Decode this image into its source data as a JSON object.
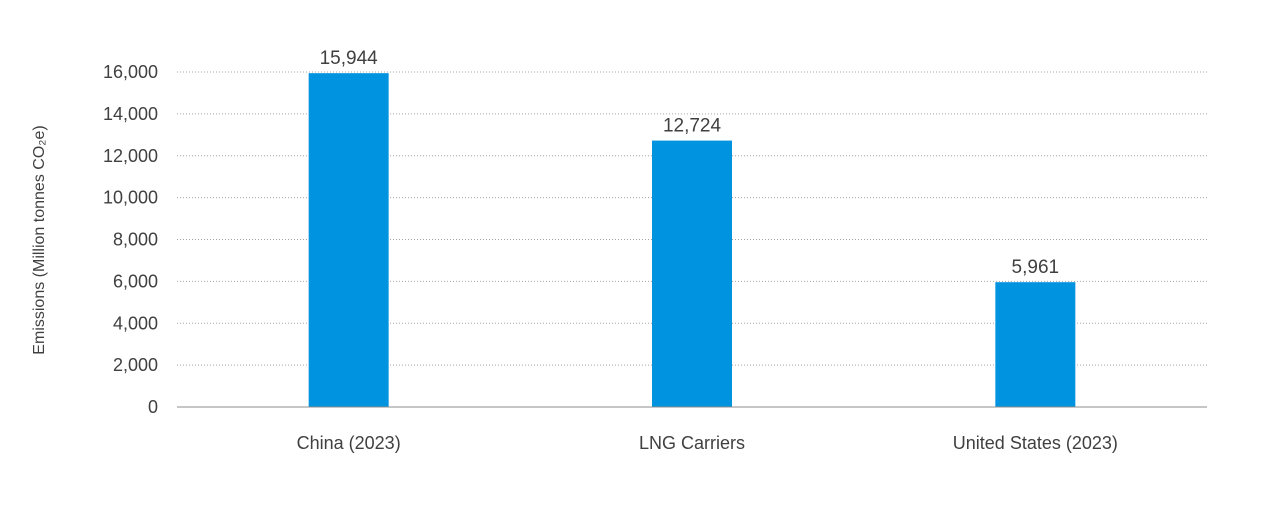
{
  "chart_data": {
    "type": "bar",
    "title": "",
    "xlabel": "",
    "ylabel": "Emissions (Million tonnes CO₂e)",
    "categories": [
      "China (2023)",
      "LNG Carriers",
      "United States (2023)"
    ],
    "values": [
      15944,
      12724,
      5961
    ],
    "value_labels": [
      "15,944",
      "12,724",
      "5,961"
    ],
    "ylim": [
      0,
      16000
    ],
    "yticks": [
      0,
      2000,
      4000,
      6000,
      8000,
      10000,
      12000,
      14000,
      16000
    ],
    "ytick_labels": [
      "0",
      "2,000",
      "4,000",
      "6,000",
      "8,000",
      "10,000",
      "12,000",
      "14,000",
      "16,000"
    ],
    "grid": true,
    "legend": "none",
    "bar_color": "#0093E0"
  }
}
